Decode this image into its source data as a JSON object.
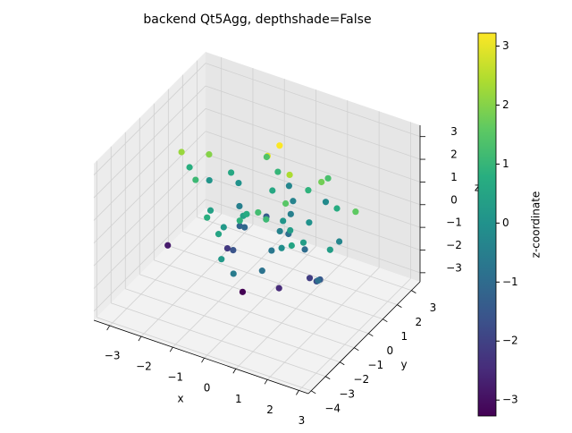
{
  "chart_data": {
    "type": "scatter3d",
    "title": "backend Qt5Agg, depthshade=False",
    "xlabel": "x",
    "ylabel": "y",
    "zlabel": "z",
    "colorbar_label": "z-coordinate",
    "colormap": "viridis",
    "x": [
      0.5,
      -1.2,
      0.3,
      1.1,
      -0.4,
      0.8,
      -0.9,
      1.6,
      -1.5,
      0.1,
      2.1,
      -2.0,
      0.7,
      -0.2,
      1.3,
      -0.7,
      0.0,
      0.9,
      -1.1,
      1.8,
      -0.5,
      0.4,
      -1.8,
      1.0,
      -0.3,
      0.6,
      2.4,
      -2.6,
      0.2,
      -0.8,
      1.4,
      -1.3,
      0.9,
      -0.1,
      0.3,
      1.7,
      -1.6,
      0.5,
      -0.6,
      1.2,
      -3.2,
      2.8,
      0.0,
      -0.9,
      1.5,
      -2.2,
      0.8,
      -0.4,
      1.9,
      -1.0,
      0.2,
      0.6,
      -1.4,
      1.1,
      -0.2,
      2.2,
      -0.7,
      0.4,
      1.0,
      -2.4
    ],
    "y": [
      0.2,
      0.9,
      -1.1,
      0.4,
      -0.6,
      1.3,
      -0.2,
      -0.8,
      1.5,
      0.0,
      0.6,
      -0.4,
      -1.7,
      1.0,
      0.3,
      -1.3,
      2.0,
      -0.5,
      0.7,
      1.1,
      -2.1,
      0.8,
      0.1,
      -1.0,
      1.6,
      -0.3,
      -0.7,
      0.5,
      -2.6,
      1.9,
      0.9,
      -0.9,
      2.3,
      -1.5,
      0.4,
      -0.1,
      1.2,
      -0.6,
      -0.2,
      1.8,
      0.3,
      0.2,
      -3.0,
      0.6,
      -1.4,
      1.0,
      0.0,
      2.6,
      -0.3,
      -1.8,
      1.4,
      -1.2,
      0.5,
      0.7,
      -0.8,
      -1.1,
      1.7,
      0.2,
      -0.4,
      -0.5
    ],
    "z": [
      0.1,
      -0.5,
      1.2,
      -1.0,
      0.4,
      0.9,
      -1.6,
      0.3,
      0.0,
      2.9,
      -0.3,
      1.1,
      -0.8,
      0.6,
      -2.1,
      0.2,
      -0.4,
      1.5,
      -1.2,
      0.7,
      0.5,
      -0.9,
      2.0,
      -0.1,
      1.0,
      -2.5,
      0.3,
      0.8,
      -0.6,
      -1.4,
      1.8,
      0.4,
      -0.2,
      0.9,
      3.2,
      -1.8,
      0.6,
      -0.7,
      -3.3,
      1.3,
      -2.8,
      1.6,
      0.2,
      -1.1,
      0.5,
      0.1,
      2.4,
      -0.3,
      -1.5,
      0.8,
      -0.5,
      1.1,
      -2.2,
      0.0,
      0.7,
      -0.9,
      1.4,
      -0.4,
      0.3,
      2.2
    ],
    "xlim": [
      -3.5,
      3.3
    ],
    "ylim": [
      -4.2,
      3.6
    ],
    "zlim": [
      -3.4,
      3.5
    ],
    "xticks": [
      {
        "value": -3,
        "label": "−3"
      },
      {
        "value": -2,
        "label": "−2"
      },
      {
        "value": -1,
        "label": "−1"
      },
      0,
      1,
      2,
      3
    ],
    "yticks": [
      {
        "value": -4,
        "label": "−4"
      },
      {
        "value": -3,
        "label": "−3"
      },
      {
        "value": -2,
        "label": "−2"
      },
      {
        "value": -1,
        "label": "−1"
      },
      0,
      1,
      2,
      3
    ],
    "zticks": [
      {
        "value": -3,
        "label": "−3"
      },
      {
        "value": -2,
        "label": "−2"
      },
      {
        "value": -1,
        "label": "−1"
      },
      0,
      1,
      2,
      3
    ],
    "clim": [
      -3.27,
      3.22
    ],
    "cticks": [
      {
        "value": -3,
        "label": "−3"
      },
      {
        "value": -2,
        "label": "−2"
      },
      {
        "value": -1,
        "label": "−1"
      },
      0,
      1,
      2,
      3
    ],
    "grid": true
  }
}
